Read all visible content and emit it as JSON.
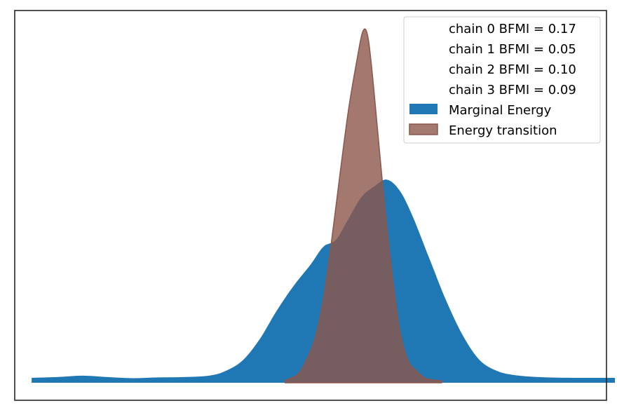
{
  "chart_data": {
    "type": "area",
    "title": "",
    "xlabel": "",
    "ylabel": "",
    "axes_ticks_visible": false,
    "grid": false,
    "legend_placement": "top-right",
    "legend_entries": [
      {
        "label": "chain  0 BFMI = 0.17",
        "swatch": "none"
      },
      {
        "label": "chain  1 BFMI = 0.05",
        "swatch": "none"
      },
      {
        "label": "chain  2 BFMI = 0.10",
        "swatch": "none"
      },
      {
        "label": "chain  3 BFMI = 0.09",
        "swatch": "none"
      },
      {
        "label": "Marginal Energy",
        "swatch": "#1f77b4"
      },
      {
        "label": "Energy transition",
        "swatch": "#8c564b"
      }
    ],
    "xlim": [
      -4.0,
      3.0
    ],
    "ylim": [
      0,
      1.0
    ],
    "series": [
      {
        "name": "Marginal Energy",
        "color": "#1f77b4",
        "opacity": 1.0,
        "x": [
          -3.8,
          -3.5,
          -3.2,
          -2.9,
          -2.6,
          -2.3,
          -2.0,
          -1.7,
          -1.5,
          -1.3,
          -1.1,
          -0.9,
          -0.7,
          -0.5,
          -0.35,
          -0.2,
          -0.05,
          0.1,
          0.25,
          0.4,
          0.55,
          0.7,
          0.9,
          1.1,
          1.3,
          1.5,
          1.7,
          1.9,
          2.2,
          2.6,
          3.1
        ],
        "y": [
          0.01,
          0.012,
          0.016,
          0.012,
          0.009,
          0.011,
          0.012,
          0.016,
          0.03,
          0.06,
          0.12,
          0.2,
          0.27,
          0.33,
          0.38,
          0.4,
          0.46,
          0.52,
          0.55,
          0.57,
          0.54,
          0.47,
          0.35,
          0.23,
          0.13,
          0.06,
          0.03,
          0.018,
          0.012,
          0.01,
          0.01
        ]
      },
      {
        "name": "Energy transition",
        "color": "#8c564b",
        "opacity": 0.8,
        "x": [
          -0.8,
          -0.65,
          -0.55,
          -0.45,
          -0.35,
          -0.25,
          -0.15,
          -0.05,
          0.05,
          0.12,
          0.18,
          0.25,
          0.35,
          0.45,
          0.55,
          0.65,
          0.75,
          0.85,
          0.95,
          1.05
        ],
        "y": [
          0.003,
          0.02,
          0.06,
          0.12,
          0.23,
          0.4,
          0.59,
          0.77,
          0.91,
          0.99,
          0.97,
          0.82,
          0.56,
          0.33,
          0.15,
          0.06,
          0.03,
          0.01,
          0.004,
          0.002
        ]
      }
    ]
  }
}
